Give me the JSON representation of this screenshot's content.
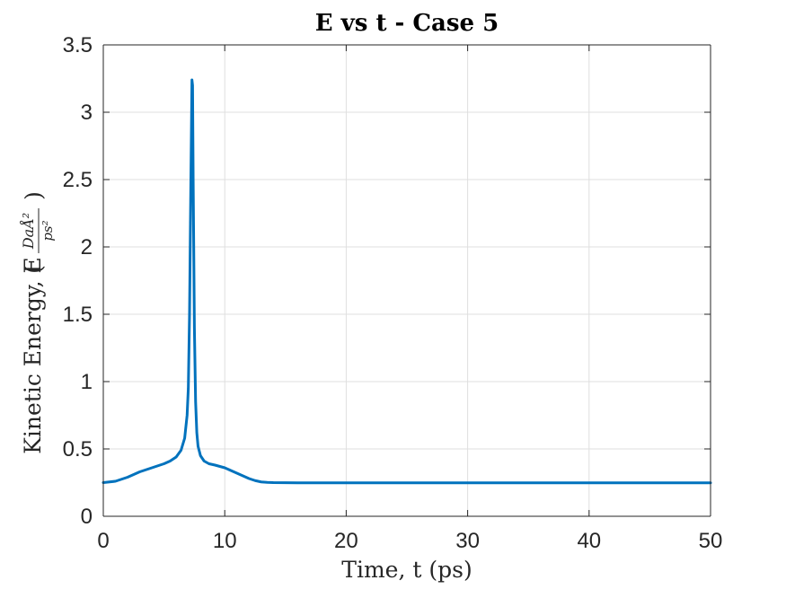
{
  "chart_data": {
    "type": "line",
    "title": "E vs t - Case 5",
    "xlabel": "Time, t (ps)",
    "ylabel_text": "Kinetic Energy, E",
    "ylabel_unit_numerator": "DaÅ²",
    "ylabel_unit_denominator": "ps²",
    "xlim": [
      0,
      50
    ],
    "ylim": [
      0,
      3.5
    ],
    "xticks": [
      0,
      10,
      20,
      30,
      40,
      50
    ],
    "xtick_labels": [
      "0",
      "10",
      "20",
      "30",
      "40",
      "50"
    ],
    "yticks": [
      0,
      0.5,
      1,
      1.5,
      2,
      2.5,
      3,
      3.5
    ],
    "ytick_labels": [
      "0",
      "0.5",
      "1",
      "1.5",
      "2",
      "2.5",
      "3",
      "3.5"
    ],
    "grid": true,
    "series": [
      {
        "color": "#0072BD",
        "x": [
          0,
          1,
          2,
          3,
          4,
          5,
          5.5,
          6,
          6.4,
          6.7,
          6.9,
          7.0,
          7.1,
          7.2,
          7.3,
          7.35,
          7.4,
          7.5,
          7.6,
          7.7,
          7.8,
          8.0,
          8.3,
          8.7,
          9.2,
          10,
          10.5,
          11,
          11.5,
          12,
          12.5,
          13,
          13.5,
          14,
          15,
          16,
          18,
          20,
          25,
          30,
          35,
          40,
          45,
          50
        ],
        "y": [
          0.25,
          0.26,
          0.29,
          0.33,
          0.36,
          0.39,
          0.41,
          0.44,
          0.49,
          0.58,
          0.75,
          0.95,
          1.5,
          2.4,
          3.24,
          3.2,
          2.5,
          1.4,
          0.85,
          0.62,
          0.52,
          0.45,
          0.41,
          0.39,
          0.38,
          0.36,
          0.34,
          0.32,
          0.3,
          0.28,
          0.265,
          0.255,
          0.252,
          0.25,
          0.249,
          0.248,
          0.248,
          0.248,
          0.248,
          0.248,
          0.248,
          0.248,
          0.248,
          0.248
        ]
      }
    ]
  }
}
